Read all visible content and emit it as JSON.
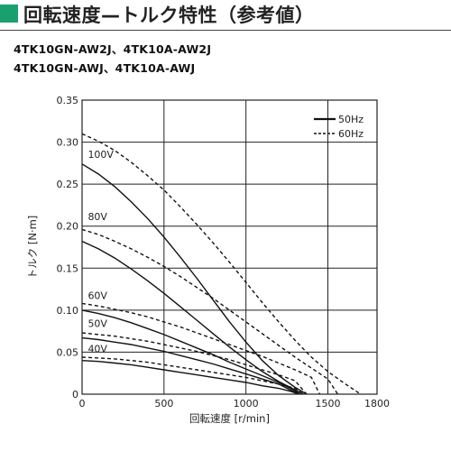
{
  "header": {
    "title": "回転速度—トルク特性（参考値）",
    "accent_color": "#1aa06e"
  },
  "models": [
    "4TK10GN-AW2J、4TK10A-AW2J",
    "4TK10GN-AWJ、4TK10A-AWJ"
  ],
  "chart_data": {
    "type": "line",
    "xlabel": "回転速度 [r/min]",
    "ylabel": "トルク [N·m]",
    "xlim": [
      0,
      1800
    ],
    "ylim": [
      0,
      0.35
    ],
    "xticks": [
      0,
      500,
      1000,
      1500,
      1800
    ],
    "xtick_labels": [
      "0",
      "500",
      "1000",
      "1500",
      "1800"
    ],
    "yticks": [
      0,
      0.05,
      0.1,
      0.15,
      0.2,
      0.25,
      0.3,
      0.35
    ],
    "ytick_labels": [
      "0",
      "0.05",
      "0.10",
      "0.15",
      "0.20",
      "0.25",
      "0.30",
      "0.35"
    ],
    "grid": true,
    "legend": {
      "position": "top-right",
      "entries": [
        {
          "label": "50Hz",
          "style": "solid"
        },
        {
          "label": "60Hz",
          "style": "dashed"
        }
      ]
    },
    "voltage_labels": [
      {
        "text": "100V",
        "x": 30,
        "y": 0.279
      },
      {
        "text": "80V",
        "x": 30,
        "y": 0.205
      },
      {
        "text": "60V",
        "x": 30,
        "y": 0.111
      },
      {
        "text": "50V",
        "x": 30,
        "y": 0.078
      },
      {
        "text": "40V",
        "x": 30,
        "y": 0.048
      }
    ],
    "series": [
      {
        "voltage": "100V",
        "frequency": "50Hz",
        "style": "solid",
        "points": [
          [
            0,
            0.274
          ],
          [
            100,
            0.262
          ],
          [
            200,
            0.247
          ],
          [
            300,
            0.229
          ],
          [
            400,
            0.209
          ],
          [
            500,
            0.187
          ],
          [
            600,
            0.163
          ],
          [
            700,
            0.138
          ],
          [
            800,
            0.112
          ],
          [
            900,
            0.086
          ],
          [
            1000,
            0.062
          ],
          [
            1100,
            0.04
          ],
          [
            1200,
            0.022
          ],
          [
            1300,
            0.008
          ],
          [
            1370,
            0.0
          ]
        ]
      },
      {
        "voltage": "100V",
        "frequency": "60Hz",
        "style": "dashed",
        "points": [
          [
            0,
            0.31
          ],
          [
            100,
            0.301
          ],
          [
            200,
            0.29
          ],
          [
            300,
            0.276
          ],
          [
            400,
            0.26
          ],
          [
            500,
            0.243
          ],
          [
            600,
            0.223
          ],
          [
            700,
            0.202
          ],
          [
            800,
            0.18
          ],
          [
            900,
            0.157
          ],
          [
            1000,
            0.133
          ],
          [
            1100,
            0.109
          ],
          [
            1200,
            0.086
          ],
          [
            1300,
            0.064
          ],
          [
            1400,
            0.044
          ],
          [
            1500,
            0.027
          ],
          [
            1600,
            0.013
          ],
          [
            1700,
            0.0
          ]
        ]
      },
      {
        "voltage": "80V",
        "frequency": "50Hz",
        "style": "solid",
        "points": [
          [
            0,
            0.182
          ],
          [
            100,
            0.173
          ],
          [
            200,
            0.162
          ],
          [
            300,
            0.149
          ],
          [
            400,
            0.135
          ],
          [
            500,
            0.12
          ],
          [
            600,
            0.104
          ],
          [
            700,
            0.088
          ],
          [
            800,
            0.072
          ],
          [
            900,
            0.056
          ],
          [
            1000,
            0.041
          ],
          [
            1100,
            0.027
          ],
          [
            1200,
            0.015
          ],
          [
            1300,
            0.005
          ],
          [
            1350,
            0.0
          ]
        ]
      },
      {
        "voltage": "80V",
        "frequency": "60Hz",
        "style": "dashed",
        "points": [
          [
            0,
            0.196
          ],
          [
            100,
            0.19
          ],
          [
            200,
            0.182
          ],
          [
            300,
            0.173
          ],
          [
            400,
            0.163
          ],
          [
            500,
            0.152
          ],
          [
            600,
            0.14
          ],
          [
            700,
            0.127
          ],
          [
            800,
            0.114
          ],
          [
            900,
            0.1
          ],
          [
            1000,
            0.086
          ],
          [
            1100,
            0.072
          ],
          [
            1200,
            0.058
          ],
          [
            1300,
            0.044
          ],
          [
            1400,
            0.031
          ],
          [
            1500,
            0.018
          ],
          [
            1560,
            0.0
          ]
        ]
      },
      {
        "voltage": "60V",
        "frequency": "50Hz",
        "style": "solid",
        "points": [
          [
            0,
            0.1
          ],
          [
            100,
            0.096
          ],
          [
            200,
            0.091
          ],
          [
            300,
            0.085
          ],
          [
            400,
            0.078
          ],
          [
            500,
            0.071
          ],
          [
            600,
            0.063
          ],
          [
            700,
            0.055
          ],
          [
            800,
            0.047
          ],
          [
            900,
            0.038
          ],
          [
            1000,
            0.03
          ],
          [
            1100,
            0.022
          ],
          [
            1200,
            0.014
          ],
          [
            1280,
            0.006
          ],
          [
            1330,
            0.0
          ]
        ]
      },
      {
        "voltage": "60V",
        "frequency": "60Hz",
        "style": "dashed",
        "points": [
          [
            0,
            0.108
          ],
          [
            100,
            0.105
          ],
          [
            200,
            0.101
          ],
          [
            300,
            0.097
          ],
          [
            400,
            0.092
          ],
          [
            500,
            0.086
          ],
          [
            600,
            0.08
          ],
          [
            700,
            0.073
          ],
          [
            800,
            0.066
          ],
          [
            900,
            0.059
          ],
          [
            1000,
            0.052
          ],
          [
            1100,
            0.045
          ],
          [
            1200,
            0.037
          ],
          [
            1300,
            0.029
          ],
          [
            1400,
            0.02
          ],
          [
            1450,
            0.0
          ]
        ]
      },
      {
        "voltage": "50V",
        "frequency": "50Hz",
        "style": "solid",
        "points": [
          [
            0,
            0.067
          ],
          [
            100,
            0.065
          ],
          [
            200,
            0.062
          ],
          [
            300,
            0.059
          ],
          [
            400,
            0.055
          ],
          [
            500,
            0.051
          ],
          [
            600,
            0.046
          ],
          [
            700,
            0.041
          ],
          [
            800,
            0.036
          ],
          [
            900,
            0.03
          ],
          [
            1000,
            0.024
          ],
          [
            1100,
            0.018
          ],
          [
            1200,
            0.012
          ],
          [
            1280,
            0.004
          ],
          [
            1320,
            0.0
          ]
        ]
      },
      {
        "voltage": "50V",
        "frequency": "60Hz",
        "style": "dashed",
        "points": [
          [
            0,
            0.073
          ],
          [
            100,
            0.071
          ],
          [
            200,
            0.069
          ],
          [
            300,
            0.066
          ],
          [
            400,
            0.063
          ],
          [
            500,
            0.059
          ],
          [
            600,
            0.055
          ],
          [
            700,
            0.051
          ],
          [
            800,
            0.046
          ],
          [
            900,
            0.041
          ],
          [
            1000,
            0.035
          ],
          [
            1100,
            0.029
          ],
          [
            1200,
            0.023
          ],
          [
            1300,
            0.016
          ],
          [
            1370,
            0.0
          ]
        ]
      },
      {
        "voltage": "40V",
        "frequency": "50Hz",
        "style": "solid",
        "points": [
          [
            0,
            0.04
          ],
          [
            100,
            0.039
          ],
          [
            200,
            0.037
          ],
          [
            300,
            0.035
          ],
          [
            400,
            0.032
          ],
          [
            500,
            0.029
          ],
          [
            600,
            0.026
          ],
          [
            700,
            0.023
          ],
          [
            800,
            0.02
          ],
          [
            900,
            0.017
          ],
          [
            1000,
            0.014
          ],
          [
            1100,
            0.01
          ],
          [
            1200,
            0.007
          ],
          [
            1280,
            0.003
          ],
          [
            1320,
            0.0
          ]
        ]
      },
      {
        "voltage": "40V",
        "frequency": "60Hz",
        "style": "dashed",
        "points": [
          [
            0,
            0.044
          ],
          [
            100,
            0.043
          ],
          [
            200,
            0.042
          ],
          [
            300,
            0.04
          ],
          [
            400,
            0.038
          ],
          [
            500,
            0.035
          ],
          [
            600,
            0.032
          ],
          [
            700,
            0.029
          ],
          [
            800,
            0.026
          ],
          [
            900,
            0.023
          ],
          [
            1000,
            0.02
          ],
          [
            1100,
            0.016
          ],
          [
            1200,
            0.012
          ],
          [
            1300,
            0.007
          ],
          [
            1350,
            0.0
          ]
        ]
      }
    ]
  }
}
